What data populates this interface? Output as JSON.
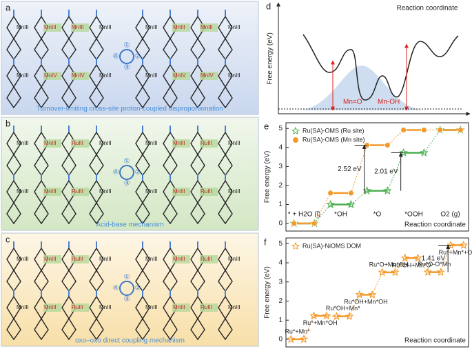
{
  "panels": [
    {
      "letter": "a",
      "caption": "Turnover-limiting cross-site proton-coupled disproportionation",
      "cycle": [
        "①",
        "②",
        "③",
        "④"
      ],
      "rows": [
        [
          "MnIII",
          "MnIII",
          "MnIII",
          "MnIII"
        ],
        [
          "MnIII",
          "MnIII",
          "MnIII",
          "MnIII"
        ],
        [
          "MnIII",
          "MnIV",
          "MnIV",
          "MnIII"
        ],
        [
          "MnIII",
          "MnIV",
          "MnIV",
          "MnIII"
        ]
      ]
    },
    {
      "letter": "b",
      "caption": "Acid-base mechanism",
      "cycle": [
        "①",
        "②",
        "③",
        "④"
      ],
      "rows": [
        [
          "MnIII",
          "MnIII",
          "RuIII",
          "MnIII"
        ],
        [
          "MnIII",
          "MnIII",
          "RuIII",
          "MnIII"
        ],
        [
          "MnIII",
          "MnIII",
          "RuIII",
          "MnIII"
        ],
        [
          "MnIII",
          "MnIII",
          "RuIII",
          "MnIII"
        ]
      ]
    },
    {
      "letter": "c",
      "caption": "oxo–oxo direct coupling mechanism",
      "cycle": [
        "①",
        "②",
        "③",
        "④"
      ],
      "rows": [
        [
          "MnIII",
          "MnIII",
          "RuIII",
          "MnIII"
        ],
        [
          "MnIII",
          "MnIII",
          "RuIII",
          "MnIII"
        ],
        [
          "MnIII",
          "MnIII",
          "RuIII",
          "MnIII"
        ],
        [
          "MnIII",
          "MnIII",
          "RuIII",
          "MnIII"
        ]
      ]
    }
  ],
  "d": {
    "letter": "d",
    "title": "Reaction coordinate",
    "ylabel": "Free energy (eV)",
    "labels": [
      "Mn=O",
      "Mn-OH"
    ]
  },
  "chart_data": [
    {
      "type": "step",
      "panel": "e",
      "xlabel": "Reaction coordinate",
      "ylabel": "Free energy (eV)",
      "categories": [
        "* + H2O (l)",
        "*OH",
        "*O",
        "*OOH",
        "O2 (g)"
      ],
      "series": [
        {
          "name": "Ru(SA)-OMS (Ru site)",
          "color": "#4caf50",
          "marker": "star",
          "values": [
            0,
            1.0,
            1.72,
            3.72,
            4.92
          ]
        },
        {
          "name": "Ru(SA)-OMS (Mn site)",
          "color": "#f39a2b",
          "marker": "circle",
          "values": [
            0,
            1.6,
            4.12,
            4.92,
            4.92
          ]
        }
      ],
      "annotations": [
        "2.52 eV",
        "2.01 eV"
      ],
      "ylim": [
        -0.4,
        5.3
      ],
      "yticks": [
        0,
        1,
        2,
        3,
        4,
        5
      ]
    },
    {
      "type": "step",
      "panel": "f",
      "xlabel": "Reaction coordinate",
      "ylabel": "Free energy (eV)",
      "categories": [
        "Ru*+Mn*",
        "Ru*+Mn*OH",
        "Ru*OH+Mn*",
        "Ru*OH+Mn*OH",
        "Ru*O+Mn*OH",
        "Ru*OH+Mn*O",
        "Ru*O-O*Mn",
        "Ru*+Mn*+O2"
      ],
      "series": [
        {
          "name": "Ru(SA)-NiOMS DOM",
          "color": "#f39a2b",
          "marker": "star",
          "values": [
            0,
            1.23,
            1.2,
            2.33,
            3.5,
            4.25,
            3.51,
            4.92
          ]
        }
      ],
      "annotations": [
        "1.41 eV"
      ],
      "ylim": [
        -0.4,
        5.3
      ],
      "yticks": [
        0,
        1,
        2,
        3,
        4,
        5
      ]
    }
  ]
}
